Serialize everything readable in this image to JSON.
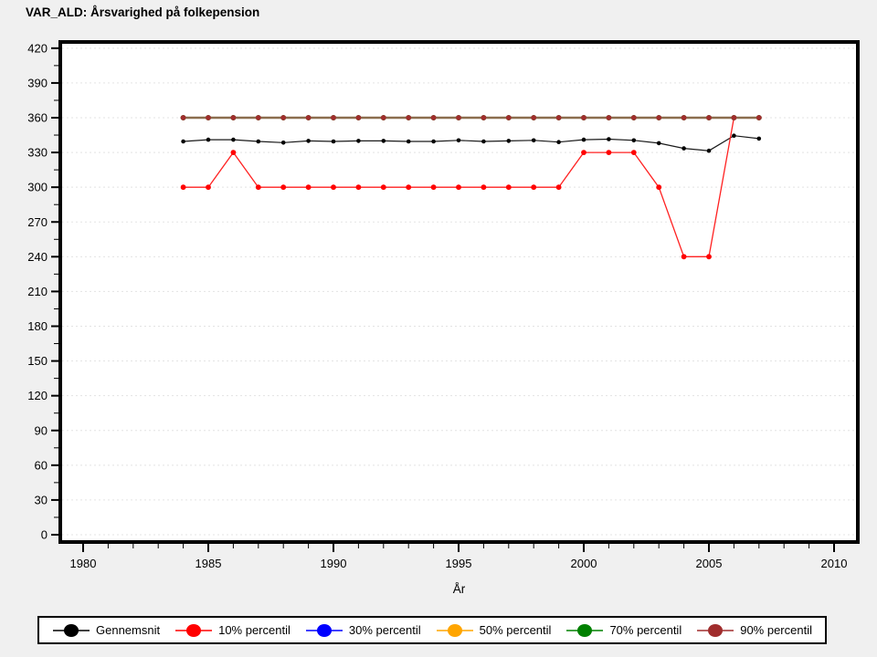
{
  "title": "VAR_ALD: Årsvarighed på folkepension",
  "colors": {
    "background": "#f0f0f0",
    "plot_background": "#ffffff",
    "frame": "#000000",
    "grid": "#e3e3e3",
    "text": "#000000",
    "legend_background": "#ffffff",
    "legend_border": "#000000"
  },
  "chart_data": {
    "type": "line",
    "title": "VAR_ALD: Årsvarighed på folkepension",
    "xlabel": "År",
    "ylabel": "",
    "xlim": [
      1979,
      2011
    ],
    "ylim": [
      0,
      420
    ],
    "xticks": [
      1980,
      1985,
      1990,
      1995,
      2000,
      2005,
      2010
    ],
    "yticks": [
      0,
      30,
      60,
      90,
      120,
      150,
      180,
      210,
      240,
      270,
      300,
      330,
      360,
      390,
      420
    ],
    "grid": "horizontal",
    "legend_position": "bottom",
    "x": [
      1984,
      1985,
      1986,
      1987,
      1988,
      1989,
      1990,
      1991,
      1992,
      1993,
      1994,
      1995,
      1996,
      1997,
      1998,
      1999,
      2000,
      2001,
      2002,
      2003,
      2004,
      2005,
      2006,
      2007
    ],
    "series": [
      {
        "name": "Gennemsnit",
        "color": "#000000",
        "line_color": "#1a1a1a",
        "line_width": 1.2,
        "marker_r": 2.3,
        "values": [
          339.5,
          341,
          341,
          339.5,
          338.5,
          340,
          339.5,
          340,
          340,
          339.5,
          339.5,
          340.5,
          339.5,
          340,
          340.5,
          339,
          341,
          341.5,
          340.5,
          338,
          333.5,
          331.5,
          344.5,
          342
        ]
      },
      {
        "name": "10% percentil",
        "color": "#ff0000",
        "line_color": "#ff2020",
        "line_width": 1.3,
        "marker_r": 2.9,
        "values": [
          300,
          300,
          330,
          300,
          300,
          300,
          300,
          300,
          300,
          300,
          300,
          300,
          300,
          300,
          300,
          300,
          330,
          330,
          330,
          300,
          240,
          240,
          360,
          360
        ]
      },
      {
        "name": "30% percentil",
        "color": "#0000ff",
        "line_color": "#0000ff",
        "line_width": 1.4,
        "marker_r": 2.9,
        "values": [
          360,
          360,
          360,
          360,
          360,
          360,
          360,
          360,
          360,
          360,
          360,
          360,
          360,
          360,
          360,
          360,
          360,
          360,
          360,
          360,
          360,
          360,
          360,
          360
        ]
      },
      {
        "name": "50% percentil",
        "color": "#ffa500",
        "line_color": "#ffa500",
        "line_width": 1.4,
        "marker_r": 2.9,
        "values": [
          360,
          360,
          360,
          360,
          360,
          360,
          360,
          360,
          360,
          360,
          360,
          360,
          360,
          360,
          360,
          360,
          360,
          360,
          360,
          360,
          360,
          360,
          360,
          360
        ]
      },
      {
        "name": "70% percentil",
        "color": "#008000",
        "line_color": "#008000",
        "line_width": 1.4,
        "marker_r": 2.9,
        "values": [
          360,
          360,
          360,
          360,
          360,
          360,
          360,
          360,
          360,
          360,
          360,
          360,
          360,
          360,
          360,
          360,
          360,
          360,
          360,
          360,
          360,
          360,
          360,
          360
        ]
      },
      {
        "name": "90% percentil",
        "color": "#a02d2d",
        "line_color": "#8b6e4e",
        "line_width": 2.4,
        "marker_r": 2.9,
        "values": [
          360,
          360,
          360,
          360,
          360,
          360,
          360,
          360,
          360,
          360,
          360,
          360,
          360,
          360,
          360,
          360,
          360,
          360,
          360,
          360,
          360,
          360,
          360,
          360
        ]
      }
    ]
  }
}
